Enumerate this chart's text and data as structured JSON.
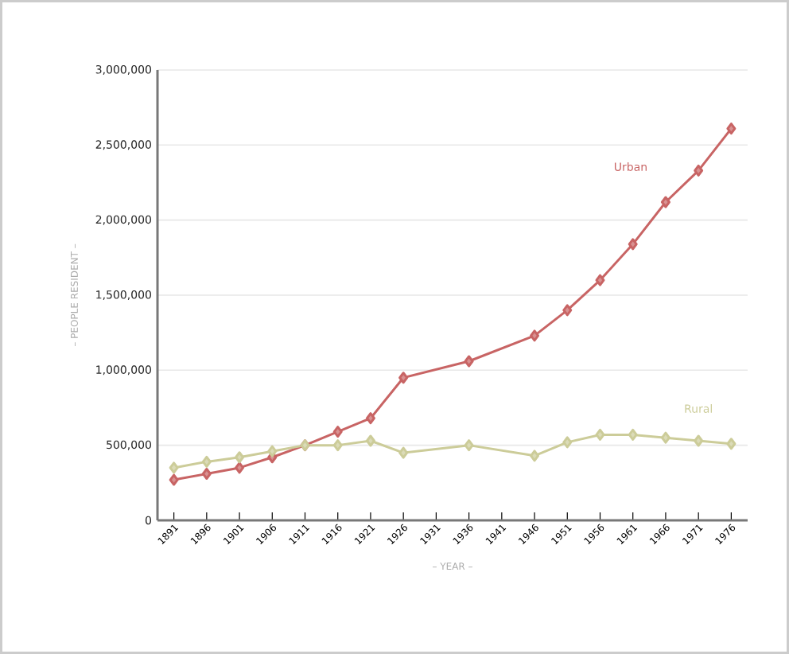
{
  "chart_data": {
    "type": "line",
    "xlabel": "– YEAR –",
    "ylabel": "– PEOPLE RESIDENT –",
    "x": [
      1891,
      1896,
      1901,
      1906,
      1911,
      1916,
      1921,
      1926,
      1936,
      1946,
      1951,
      1956,
      1961,
      1966,
      1971,
      1976
    ],
    "series": [
      {
        "name": "Urban",
        "color": "#c86464",
        "values": [
          270000,
          310000,
          350000,
          420000,
          500000,
          590000,
          680000,
          950000,
          1060000,
          1230000,
          1400000,
          1600000,
          1840000,
          2120000,
          2330000,
          2610000
        ]
      },
      {
        "name": "Rural",
        "color": "#cccc99",
        "values": [
          350000,
          390000,
          420000,
          460000,
          500000,
          500000,
          530000,
          450000,
          500000,
          430000,
          520000,
          570000,
          570000,
          550000,
          530000,
          510000
        ]
      }
    ],
    "xlim": [
      1888.5,
      1978.5
    ],
    "xticks": [
      1891,
      1896,
      1901,
      1906,
      1911,
      1916,
      1921,
      1926,
      1931,
      1936,
      1941,
      1946,
      1951,
      1956,
      1961,
      1966,
      1971,
      1976
    ],
    "ylim": [
      0,
      3000000
    ],
    "yticks": [
      {
        "value": 0,
        "label": "0"
      },
      {
        "value": 500000,
        "label": "500,000"
      },
      {
        "value": 1000000,
        "label": "1,000,000"
      },
      {
        "value": 1500000,
        "label": "1,500,000"
      },
      {
        "value": 2000000,
        "label": "2,000,000"
      },
      {
        "value": 2500000,
        "label": "2,500,000"
      },
      {
        "value": 3000000,
        "label": "3,000,000"
      }
    ],
    "grid": "y",
    "legend": false,
    "marker": "diamond",
    "line_style": "solid"
  }
}
